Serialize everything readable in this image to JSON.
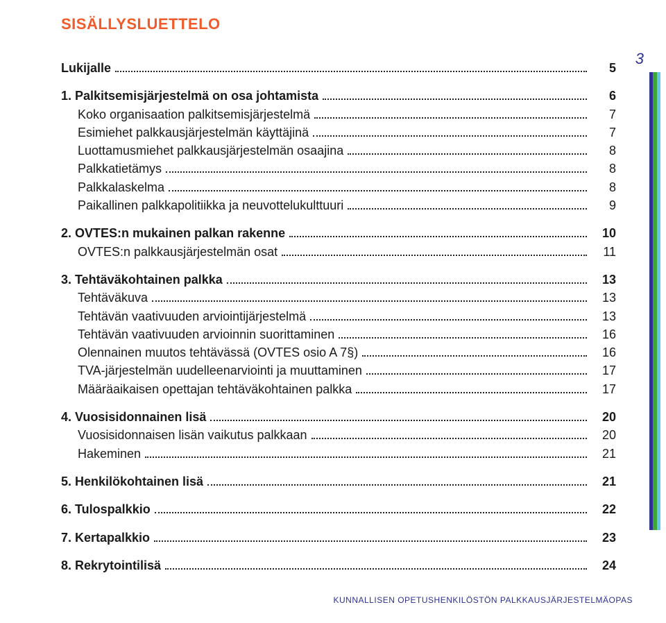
{
  "heading_text": "SISÄLLYSLUETTELO",
  "heading_color": "#f15a29",
  "page_number": "3",
  "page_number_color": "#2e3192",
  "marker_colors": [
    "#2e3192",
    "#3fa535",
    "#65c6e8"
  ],
  "footer_text": "KUNNALLISEN OPETUSHENKILÖSTÖN PALKKAUSJÄRJESTELMÄOPAS",
  "footer_color": "#2e3192",
  "text_color": "#1a1a1a",
  "toc": [
    {
      "label": "Lukijalle",
      "page": "5",
      "bold": true,
      "sub": false,
      "gap_after": true
    },
    {
      "label": "1. Palkitsemisjärjestelmä on osa johtamista",
      "page": "6",
      "bold": true,
      "sub": false
    },
    {
      "label": "Koko organisaation palkitsemisjärjestelmä",
      "page": "7",
      "bold": false,
      "sub": true
    },
    {
      "label": "Esimiehet palkkausjärjestelmän käyttäjinä",
      "page": "7",
      "bold": false,
      "sub": true
    },
    {
      "label": "Luottamusmiehet palkkausjärjestelmän osaajina",
      "page": "8",
      "bold": false,
      "sub": true
    },
    {
      "label": "Palkkatietämys",
      "page": "8",
      "bold": false,
      "sub": true
    },
    {
      "label": "Palkkalaskelma",
      "page": "8",
      "bold": false,
      "sub": true
    },
    {
      "label": "Paikallinen palkkapolitiikka ja neuvottelukulttuuri",
      "page": "9",
      "bold": false,
      "sub": true,
      "gap_after": true
    },
    {
      "label": "2. OVTES:n mukainen palkan rakenne",
      "page": "10",
      "bold": true,
      "sub": false
    },
    {
      "label": "OVTES:n palkkausjärjestelmän osat",
      "page": "11",
      "bold": false,
      "sub": true,
      "gap_after": true
    },
    {
      "label": "3. Tehtäväkohtainen palkka",
      "page": "13",
      "bold": true,
      "sub": false
    },
    {
      "label": "Tehtäväkuva",
      "page": "13",
      "bold": false,
      "sub": true
    },
    {
      "label": "Tehtävän vaativuuden arviointijärjestelmä",
      "page": "13",
      "bold": false,
      "sub": true
    },
    {
      "label": "Tehtävän vaativuuden arvioinnin suorittaminen",
      "page": "16",
      "bold": false,
      "sub": true
    },
    {
      "label": "Olennainen muutos tehtävässä (OVTES osio A 7§)",
      "page": "16",
      "bold": false,
      "sub": true
    },
    {
      "label": "TVA-järjestelmän uudelleenarviointi ja muuttaminen",
      "page": "17",
      "bold": false,
      "sub": true
    },
    {
      "label": "Määräaikaisen opettajan tehtäväkohtainen palkka",
      "page": "17",
      "bold": false,
      "sub": true,
      "gap_after": true
    },
    {
      "label": "4. Vuosisidonnainen lisä",
      "page": "20",
      "bold": true,
      "sub": false
    },
    {
      "label": "Vuosisidonnaisen lisän vaikutus palkkaan",
      "page": "20",
      "bold": false,
      "sub": true
    },
    {
      "label": "Hakeminen",
      "page": "21",
      "bold": false,
      "sub": true,
      "gap_after": true
    },
    {
      "label": "5. Henkilökohtainen lisä",
      "page": "21",
      "bold": true,
      "sub": false,
      "gap_after": true
    },
    {
      "label": "6. Tulospalkkio",
      "page": "22",
      "bold": true,
      "sub": false,
      "gap_after": true
    },
    {
      "label": "7. Kertapalkkio",
      "page": "23",
      "bold": true,
      "sub": false,
      "gap_after": true
    },
    {
      "label": "8. Rekrytointilisä",
      "page": "24",
      "bold": true,
      "sub": false
    }
  ]
}
